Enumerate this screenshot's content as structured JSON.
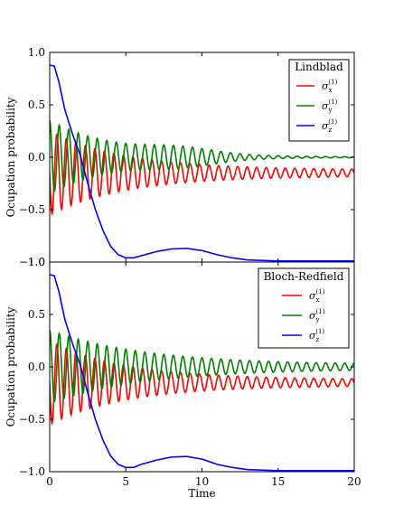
{
  "chart_data": [
    {
      "type": "line",
      "title": "",
      "legend_title": "Lindblad",
      "legend_position": "top-right",
      "xlabel": "",
      "ylabel": "Ocupation probability",
      "xlim": [
        0,
        20
      ],
      "ylim": [
        -1.0,
        1.0
      ],
      "xticks": [
        0,
        5,
        10,
        15,
        20
      ],
      "yticks": [
        "1.0",
        "0.5",
        "0.0",
        "−0.5",
        "−1.0"
      ],
      "show_xticklabels": false,
      "grid": false,
      "series": [
        {
          "name": "σx(1)",
          "symbol": "σ",
          "sub": "x",
          "sup": "(1)",
          "color": "#ff0000",
          "model": {
            "kind": "osc",
            "offset": -0.15,
            "amp0": 0.4,
            "amp_end": 0.03,
            "decay": 0.2,
            "freq": 3.2,
            "phase": 1.57
          }
        },
        {
          "name": "σy(1)",
          "symbol": "σ",
          "sub": "y",
          "sup": "(1)",
          "color": "#008000",
          "model": {
            "kind": "osc",
            "offset": 0.0,
            "amp0": 0.35,
            "amp_end": 0.0,
            "decay": 0.22,
            "freq": 3.2,
            "phase": 0.0,
            "beat": {
              "amp": 0.055,
              "center": 8.5,
              "width": 3.2
            }
          }
        },
        {
          "name": "σz(1)",
          "symbol": "σ",
          "sub": "z",
          "sup": "(1)",
          "color": "#0000ff",
          "points": [
            [
              0,
              0.88
            ],
            [
              0.3,
              0.87
            ],
            [
              0.6,
              0.72
            ],
            [
              1.0,
              0.45
            ],
            [
              1.5,
              0.22
            ],
            [
              2.0,
              0.02
            ],
            [
              2.5,
              -0.25
            ],
            [
              3.0,
              -0.5
            ],
            [
              3.5,
              -0.7
            ],
            [
              4.0,
              -0.85
            ],
            [
              4.5,
              -0.93
            ],
            [
              5.0,
              -0.96
            ],
            [
              5.5,
              -0.96
            ],
            [
              6.0,
              -0.94
            ],
            [
              7.0,
              -0.9
            ],
            [
              8.0,
              -0.875
            ],
            [
              9.0,
              -0.87
            ],
            [
              10.0,
              -0.89
            ],
            [
              11.0,
              -0.93
            ],
            [
              12.0,
              -0.96
            ],
            [
              13.0,
              -0.98
            ],
            [
              15.0,
              -0.99
            ],
            [
              17.0,
              -0.99
            ],
            [
              20.0,
              -0.99
            ]
          ]
        }
      ]
    },
    {
      "type": "line",
      "title": "",
      "legend_title": "Bloch-Redfield",
      "legend_position": "top-right",
      "xlabel": "Time",
      "ylabel": "Ocupation probability",
      "xlim": [
        0,
        20
      ],
      "ylim": [
        -1.0,
        1.0
      ],
      "xticks": [
        0,
        5,
        10,
        15,
        20
      ],
      "yticks": [
        "1.0",
        "0.5",
        "0.0",
        "−0.5",
        "−1.0"
      ],
      "show_xticklabels": true,
      "grid": false,
      "series": [
        {
          "name": "σx(1)",
          "symbol": "σ",
          "sub": "x",
          "sup": "(1)",
          "color": "#ff0000",
          "model": {
            "kind": "osc",
            "offset": -0.15,
            "amp0": 0.4,
            "amp_end": 0.03,
            "decay": 0.2,
            "freq": 3.2,
            "phase": 1.57
          }
        },
        {
          "name": "σy(1)",
          "symbol": "σ",
          "sub": "y",
          "sup": "(1)",
          "color": "#008000",
          "model": {
            "kind": "osc",
            "offset": 0.0,
            "amp0": 0.35,
            "amp_end": 0.02,
            "decay": 0.16,
            "freq": 3.2,
            "phase": 0.0
          }
        },
        {
          "name": "σz(1)",
          "symbol": "σ",
          "sub": "z",
          "sup": "(1)",
          "color": "#0000ff",
          "points": [
            [
              0,
              0.88
            ],
            [
              0.3,
              0.87
            ],
            [
              0.6,
              0.72
            ],
            [
              1.0,
              0.45
            ],
            [
              1.5,
              0.22
            ],
            [
              2.0,
              0.02
            ],
            [
              2.5,
              -0.25
            ],
            [
              3.0,
              -0.5
            ],
            [
              3.5,
              -0.7
            ],
            [
              4.0,
              -0.85
            ],
            [
              4.5,
              -0.93
            ],
            [
              5.0,
              -0.96
            ],
            [
              5.5,
              -0.96
            ],
            [
              6.0,
              -0.93
            ],
            [
              7.0,
              -0.89
            ],
            [
              8.0,
              -0.86
            ],
            [
              9.0,
              -0.855
            ],
            [
              10.0,
              -0.88
            ],
            [
              11.0,
              -0.93
            ],
            [
              12.0,
              -0.96
            ],
            [
              13.0,
              -0.98
            ],
            [
              15.0,
              -0.99
            ],
            [
              17.0,
              -0.99
            ],
            [
              20.0,
              -0.99
            ]
          ]
        }
      ]
    }
  ]
}
